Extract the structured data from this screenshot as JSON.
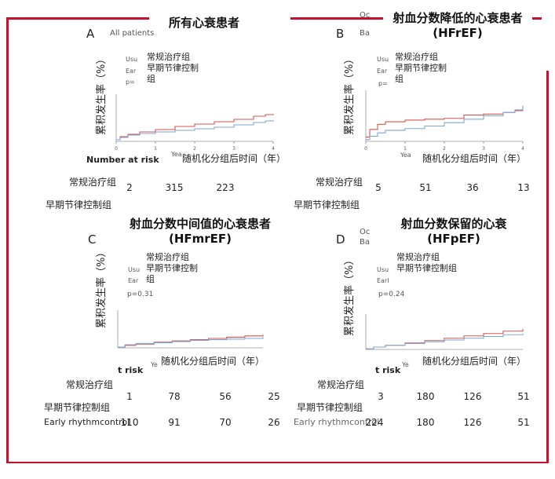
{
  "chart_data": [
    {
      "type": "line",
      "panel_letter": "A",
      "title": "所有心衰患者",
      "subtitle_fragment": "All patients",
      "ylabel": "累积发生率（%）",
      "xlabel": "随机化分组后时间（年）",
      "xlabel_fragment": "Yea",
      "p_label": "p=",
      "legend": [
        {
          "fragment": "Usu",
          "label": "常规治疗组",
          "color": "#d9534f"
        },
        {
          "fragment": "Ear",
          "label": "早期节律控制组",
          "color": "#7ba7d6"
        }
      ],
      "xlim": [
        0,
        4
      ],
      "ylim": [
        0,
        60
      ],
      "x_ticks": [
        "0",
        "1",
        "2",
        "3",
        "4"
      ],
      "series": [
        {
          "name": "常规治疗组",
          "color": "#d9534f",
          "x": [
            0,
            0.1,
            0.3,
            0.6,
            1,
            1.5,
            2,
            2.5,
            3,
            3.5,
            3.8,
            4
          ],
          "y": [
            2,
            6,
            9,
            12,
            15,
            19,
            22,
            25,
            28,
            32,
            34,
            35
          ]
        },
        {
          "name": "早期节律控制组",
          "color": "#7ba7d6",
          "x": [
            0,
            0.1,
            0.3,
            0.6,
            1,
            1.5,
            2,
            2.5,
            3,
            3.5,
            3.8,
            4
          ],
          "y": [
            2,
            5,
            8,
            10,
            12,
            14,
            16,
            18,
            21,
            24,
            26,
            27
          ]
        }
      ],
      "risk": {
        "header": "Number at risk",
        "rows": [
          {
            "label": "常规治疗组",
            "values": [
              "2",
              "315",
              "223"
            ]
          },
          {
            "label": "早期节律控制组",
            "values": [
              "",
              "316",
              "226"
            ]
          }
        ]
      }
    },
    {
      "type": "line",
      "panel_letter": "B",
      "title": "射血分数降低的心衰患者\n(HFrEF)",
      "subtitle_fragment": "Ba",
      "header_fragment": "Oc",
      "ylabel": "累积发生率（%）",
      "xlabel": "随机化分组后时间（年）",
      "xlabel_fragment": "Yea",
      "p_label": "p=",
      "legend": [
        {
          "fragment": "Usu",
          "label": "常规治疗组",
          "color": "#d9534f"
        },
        {
          "fragment": "Ear",
          "label": "早期节律控制组",
          "color": "#7ba7d6"
        }
      ],
      "xlim": [
        0,
        4
      ],
      "ylim": [
        0,
        60
      ],
      "x_ticks": [
        "0",
        "1",
        "2",
        "3",
        "4"
      ],
      "series": [
        {
          "name": "常规治疗组",
          "color": "#d9534f",
          "x": [
            0,
            0.1,
            0.3,
            0.5,
            1,
            1.5,
            2,
            2.5,
            3,
            3.5,
            3.8,
            4
          ],
          "y": [
            5,
            14,
            20,
            23,
            25,
            26,
            27,
            31,
            32,
            34,
            36,
            42
          ]
        },
        {
          "name": "早期节律控制组",
          "color": "#7ba7d6",
          "x": [
            0,
            0.1,
            0.3,
            0.5,
            1,
            1.5,
            2,
            2.5,
            3,
            3.5,
            3.8,
            4
          ],
          "y": [
            2,
            6,
            10,
            13,
            15,
            18,
            22,
            26,
            30,
            34,
            37,
            42
          ]
        }
      ],
      "risk": {
        "header": "",
        "rows": [
          {
            "label": "常规治疗组",
            "values": [
              "5",
              "51",
              "36",
              "13"
            ]
          },
          {
            "label": "早期节律控制组",
            "values": [
              "",
              "",
              "",
              ""
            ]
          }
        ]
      }
    },
    {
      "type": "line",
      "panel_letter": "C",
      "title": "射血分数中间值的心衰患者\n(HFmrEF)",
      "ylabel": "累积发生率（%）",
      "xlabel": "随机化分组后时间（年）",
      "xlabel_fragment": "Ye",
      "p_label": "p=0.31",
      "legend": [
        {
          "fragment": "Usu",
          "label": "常规治疗组",
          "color": "#d9534f"
        },
        {
          "fragment": "Ear",
          "label": "早期节律控制组",
          "color": "#7ba7d6"
        }
      ],
      "xlim": [
        0,
        4
      ],
      "ylim": [
        0,
        60
      ],
      "x_ticks": [],
      "series": [
        {
          "name": "常规治疗组",
          "color": "#d9534f",
          "x": [
            0,
            0.2,
            0.5,
            1,
            1.5,
            2,
            2.5,
            3,
            3.5,
            4
          ],
          "y": [
            1,
            4,
            6,
            9,
            11,
            13,
            15,
            17,
            19,
            21
          ]
        },
        {
          "name": "早期节律控制组",
          "color": "#7ba7d6",
          "x": [
            0,
            0.2,
            0.5,
            1,
            1.5,
            2,
            2.5,
            3,
            3.5,
            4
          ],
          "y": [
            1,
            5,
            7,
            8,
            10,
            12,
            13,
            14,
            15,
            17
          ]
        }
      ],
      "risk": {
        "header": "t risk",
        "rows": [
          {
            "label": "常规治疗组",
            "values": [
              "1",
              "78",
              "56",
              "25"
            ]
          },
          {
            "label": "早期节律控制组",
            "values": [
              "",
              "",
              "",
              ""
            ]
          },
          {
            "label": "Early rhythmcontrol",
            "values": [
              "110",
              "91",
              "70",
              "26"
            ]
          }
        ]
      }
    },
    {
      "type": "line",
      "panel_letter": "D",
      "title": "射血分数保留的心衰\n(HFpEF)",
      "header_fragment": "Oc",
      "subtitle_fragment": "Ba",
      "ylabel": "累积发生率（%）",
      "xlabel": "随机化分组后时间（年）",
      "xlabel_fragment": "Ye",
      "p_label": "p=0.24",
      "legend": [
        {
          "fragment": "Usu",
          "label": "常规治疗组",
          "color": "#d9534f"
        },
        {
          "fragment": "Earl",
          "label": "早期节律控制组",
          "color": "#7ba7d6"
        }
      ],
      "xlim": [
        0,
        4
      ],
      "ylim": [
        0,
        60
      ],
      "x_ticks": [],
      "series": [
        {
          "name": "常规治疗组",
          "color": "#d9534f",
          "x": [
            0,
            0.2,
            0.5,
            1,
            1.5,
            2,
            2.5,
            3,
            3.5,
            4
          ],
          "y": [
            1,
            4,
            7,
            11,
            15,
            19,
            23,
            27,
            31,
            35
          ]
        },
        {
          "name": "早期节律控制组",
          "color": "#7ba7d6",
          "x": [
            0,
            0.2,
            0.5,
            1,
            1.5,
            2,
            2.5,
            3,
            3.5,
            4
          ],
          "y": [
            1,
            4,
            7,
            10,
            13,
            16,
            19,
            22,
            25,
            27
          ]
        }
      ],
      "risk": {
        "header": "t risk",
        "rows": [
          {
            "label": "常规治疗组",
            "values": [
              "3",
              "180",
              "126",
              "51"
            ]
          },
          {
            "label": "早期节律控制组",
            "values": [
              "",
              "",
              "",
              ""
            ]
          },
          {
            "label": "Early rhythmcontrol",
            "values": [
              "224",
              "180",
              "126",
              "51"
            ]
          }
        ]
      }
    }
  ]
}
